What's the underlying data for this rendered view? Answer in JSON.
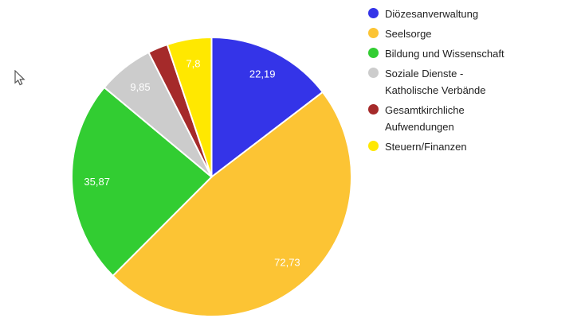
{
  "chart_data": {
    "type": "pie",
    "title": "",
    "background_color": "#ffffff",
    "legend_position": "right",
    "legend_text_color": "#222222",
    "slice_label_color": "#ffffff",
    "start_angle_deg": 0,
    "direction": "clockwise",
    "slices": [
      {
        "label": "Diözesanverwaltung",
        "value": 22.19,
        "value_label": "22,19",
        "color": "#3434e8"
      },
      {
        "label": "Seelsorge",
        "value": 72.73,
        "value_label": "72,73",
        "color": "#fcc434"
      },
      {
        "label": "Bildung und Wissenschaft",
        "value": 35.87,
        "value_label": "35,87",
        "color": "#32cd32"
      },
      {
        "label": "Soziale Dienste -\nKatholische Verbände",
        "value": 9.85,
        "value_label": "9,85",
        "color": "#cccccc"
      },
      {
        "label": "Gesamtkirchliche\nAufwendungen",
        "value": 3.5,
        "value_label": null,
        "estimated": true,
        "color": "#a52a2a"
      },
      {
        "label": "Steuern/Finanzen",
        "value": 7.8,
        "value_label": "7,8",
        "color": "#ffe800"
      }
    ]
  }
}
